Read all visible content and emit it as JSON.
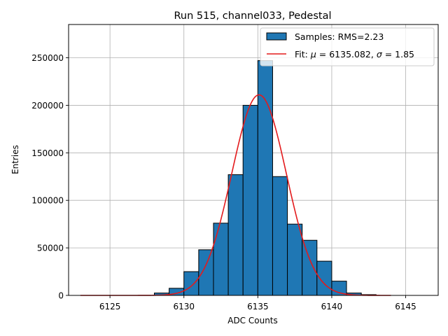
{
  "chart_data": {
    "type": "bar",
    "title": "Run 515, channel033, Pedestal",
    "xlabel": "ADC Counts",
    "ylabel": "Entries",
    "xlim": [
      6122.2,
      6147.2
    ],
    "ylim": [
      0,
      285000
    ],
    "xticks": [
      6125,
      6130,
      6135,
      6140,
      6145
    ],
    "xtick_labels": [
      "6125",
      "6130",
      "6135",
      "6140",
      "6145"
    ],
    "yticks": [
      0,
      50000,
      100000,
      150000,
      200000,
      250000
    ],
    "ytick_labels": [
      "0",
      "50000",
      "100000",
      "150000",
      "200000",
      "250000"
    ],
    "grid": true,
    "legend_position": "top-right",
    "histogram": {
      "name": "Samples: RMS=2.23",
      "color": "#1f77b4",
      "edgecolor": "#000000",
      "bins": [
        {
          "x0": 6128,
          "x1": 6129,
          "value": 2500
        },
        {
          "x0": 6129,
          "x1": 6130,
          "value": 7500
        },
        {
          "x0": 6130,
          "x1": 6131,
          "value": 25000
        },
        {
          "x0": 6131,
          "x1": 6132,
          "value": 48000
        },
        {
          "x0": 6132,
          "x1": 6133,
          "value": 76000
        },
        {
          "x0": 6133,
          "x1": 6134,
          "value": 127000
        },
        {
          "x0": 6134,
          "x1": 6135,
          "value": 200000
        },
        {
          "x0": 6135,
          "x1": 6136,
          "value": 247000
        },
        {
          "x0": 6136,
          "x1": 6137,
          "value": 125000
        },
        {
          "x0": 6137,
          "x1": 6138,
          "value": 75000
        },
        {
          "x0": 6138,
          "x1": 6139,
          "value": 58000
        },
        {
          "x0": 6139,
          "x1": 6140,
          "value": 36000
        },
        {
          "x0": 6140,
          "x1": 6141,
          "value": 15000
        },
        {
          "x0": 6141,
          "x1": 6142,
          "value": 2500
        },
        {
          "x0": 6142,
          "x1": 6143,
          "value": 800
        }
      ]
    },
    "fit": {
      "name_prefix": "Fit: ",
      "mu_symbol": "μ",
      "mu_text": " = 6135.082, ",
      "sigma_symbol": "σ",
      "sigma_text": " = 1.85",
      "color": "#e31a1c",
      "mu": 6135.082,
      "sigma": 1.85,
      "amplitude": 211000,
      "x_range": [
        6123,
        6144
      ]
    }
  }
}
